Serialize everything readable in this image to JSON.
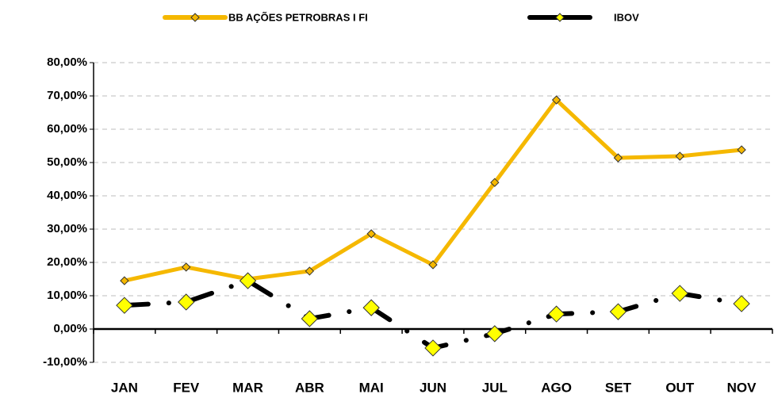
{
  "chart_data": {
    "type": "line",
    "categories": [
      "JAN",
      "FEV",
      "MAR",
      "ABR",
      "MAI",
      "JUN",
      "JUL",
      "AGO",
      "SET",
      "OUT",
      "NOV"
    ],
    "series": [
      {
        "name": "BB AÇÕES PETROBRAS I FI",
        "color": "#f5b800",
        "marker_color": "#f5b800",
        "line_style": "solid",
        "values": [
          14.5,
          18.6,
          15.0,
          17.4,
          28.6,
          19.3,
          44.0,
          68.8,
          51.4,
          51.9,
          53.8
        ]
      },
      {
        "name": "IBOV",
        "color": "#000000",
        "marker_color": "#ffff00",
        "line_style": "dashed",
        "values": [
          7.1,
          8.1,
          14.5,
          3.1,
          6.4,
          -5.7,
          -1.4,
          4.5,
          5.2,
          10.7,
          7.6
        ]
      }
    ],
    "ylim": [
      -10,
      80
    ],
    "yticks": [
      {
        "value": -10,
        "label": "-10,00%"
      },
      {
        "value": 0,
        "label": "0,00%"
      },
      {
        "value": 10,
        "label": "10,00%"
      },
      {
        "value": 20,
        "label": "20,00%"
      },
      {
        "value": 30,
        "label": "30,00%"
      },
      {
        "value": 40,
        "label": "40,00%"
      },
      {
        "value": 50,
        "label": "50,00%"
      },
      {
        "value": 60,
        "label": "60,00%"
      },
      {
        "value": 70,
        "label": "70,00%"
      },
      {
        "value": 80,
        "label": "80,00%"
      }
    ],
    "grid": true
  }
}
